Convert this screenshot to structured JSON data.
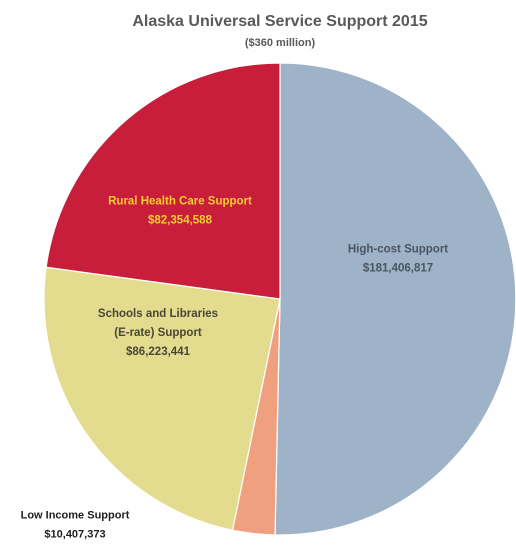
{
  "chart_data": {
    "type": "pie",
    "title": "Alaska Universal Service Support 2015",
    "subtitle": "($360 million)",
    "slices": [
      {
        "label_lines": [
          "High-cost Support"
        ],
        "value_label": "$181,406,817",
        "value": 181406817,
        "color": "#9fb3c8",
        "label_color": "#4a5563"
      },
      {
        "label_lines": [
          "Low Income Support"
        ],
        "value_label": "$10,407,373",
        "value": 10407373,
        "color": "#f0a07e",
        "label_color": "#1f1f1f"
      },
      {
        "label_lines": [
          "Schools and Libraries",
          "(E-rate) Support"
        ],
        "value_label": "$86,223,441",
        "value": 86223441,
        "color": "#e3dc8e",
        "label_color": "#4a4638"
      },
      {
        "label_lines": [
          "Rural Health Care Support"
        ],
        "value_label": "$82,354,588",
        "value": 82354588,
        "color": "#c81e3c",
        "label_color": "#f3cf2c"
      }
    ],
    "start_angle_deg": 0,
    "direction": "clockwise"
  }
}
